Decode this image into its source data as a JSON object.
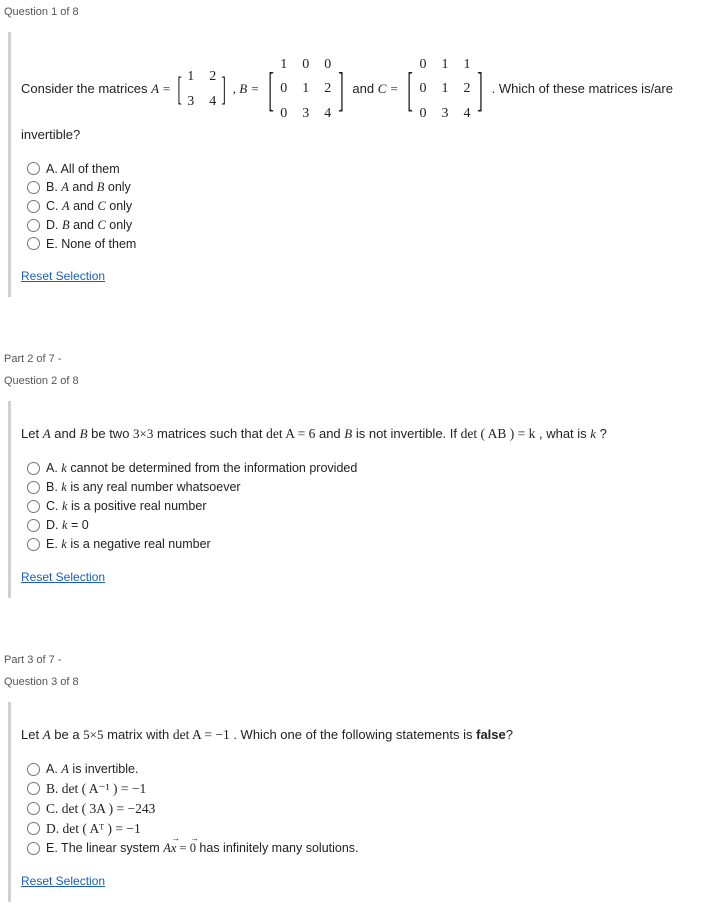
{
  "q1": {
    "header": "Question 1 of 8",
    "stem_pre": "Consider the matrices ",
    "A_label": "A =",
    "A_rows": [
      [
        "1",
        "2"
      ],
      [
        "3",
        "4"
      ]
    ],
    "B_label": ", B =",
    "B_rows": [
      [
        "1",
        "0",
        "0"
      ],
      [
        "0",
        "1",
        "2"
      ],
      [
        "0",
        "3",
        "4"
      ]
    ],
    "and_label": " and ",
    "C_label": "C =",
    "C_rows": [
      [
        "0",
        "1",
        "1"
      ],
      [
        "0",
        "1",
        "2"
      ],
      [
        "0",
        "3",
        "4"
      ]
    ],
    "stem_post": " . Which of these matrices is/are invertible?",
    "opts": {
      "A": "A. All of them",
      "B_pre": "B. ",
      "B_m1": "A",
      "B_mid": " and ",
      "B_m2": "B",
      "B_post": " only",
      "C_pre": "C. ",
      "C_m1": "A",
      "C_mid": " and ",
      "C_m2": "C",
      "C_post": " only",
      "D_pre": "D. ",
      "D_m1": "B",
      "D_mid": " and ",
      "D_m2": "C",
      "D_post": " only",
      "E": "E. None of them"
    },
    "reset": "Reset Selection"
  },
  "part2": "Part 2 of 7 -",
  "q2": {
    "header": "Question 2 of 8",
    "stem_1": "Let ",
    "stem_A": "A",
    "stem_2": " and ",
    "stem_B": "B",
    "stem_3": " be two ",
    "stem_dim": "3×3",
    "stem_4": " matrices such that ",
    "stem_detA": "det A = 6",
    "stem_5": " and ",
    "stem_B2": "B",
    "stem_6": " is not invertible. If ",
    "stem_detAB": "det ( AB ) = k",
    "stem_7": " , what is ",
    "stem_k": "k",
    "stem_8": " ?",
    "opts": {
      "A_pre": "A. ",
      "A_k": "k",
      "A_post": " cannot be determined from the information provided",
      "B_pre": "B. ",
      "B_k": "k",
      "B_post": " is any real number whatsoever",
      "C_pre": "C. ",
      "C_k": "k",
      "C_post": " is a positive real number",
      "D_pre": "D. ",
      "D_k": "k",
      "D_post": " = 0",
      "E_pre": "E. ",
      "E_k": "k",
      "E_post": " is a negative real number"
    },
    "reset": "Reset Selection"
  },
  "part3": "Part 3 of 7 -",
  "q3": {
    "header": "Question 3 of 8",
    "stem_1": "Let ",
    "stem_A": "A",
    "stem_2": " be a ",
    "stem_dim": "5×5",
    "stem_3": " matrix with ",
    "stem_detA": "det A = −1",
    "stem_4": " . Which one of the following statements is ",
    "stem_false": "false",
    "stem_5": "?",
    "opts": {
      "A_pre": "A. ",
      "A_k": "A",
      "A_post": " is invertible.",
      "B_full": "B. det ( A⁻¹ ) = −1",
      "C_full": "C. det ( 3A ) = −243",
      "D_full": "D. det ( Aᵀ ) = −1",
      "E_pre": "E. The linear system ",
      "E_eq1": "A",
      "E_x": "x",
      "E_eq2": " = ",
      "E_zero": "0",
      "E_post": " has infinitely many solutions."
    },
    "reset": "Reset Selection"
  },
  "colors": {
    "link": "#1a5fb4",
    "border": "#d0d0d0",
    "text": "#333"
  }
}
